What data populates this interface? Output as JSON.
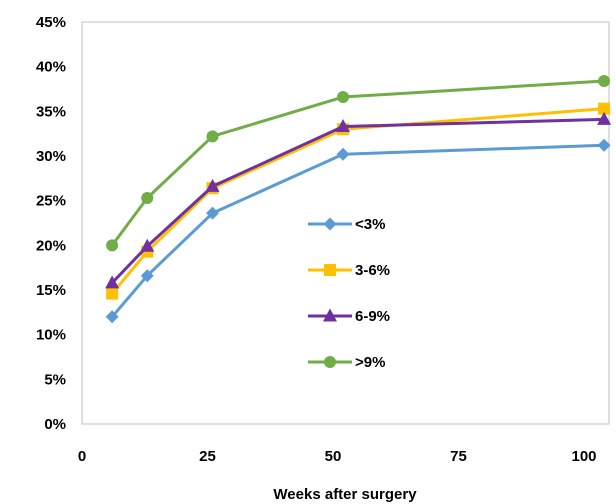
{
  "chart_data": {
    "type": "line",
    "title": "",
    "xlabel": "Weeks after surgery",
    "ylabel": "",
    "xlim": [
      0,
      105
    ],
    "ylim": [
      0,
      45
    ],
    "x_ticks": [
      0,
      25,
      50,
      75,
      100
    ],
    "y_ticks": [
      0,
      5,
      10,
      15,
      20,
      25,
      30,
      35,
      40,
      45
    ],
    "y_tick_labels": [
      "0%",
      "5%",
      "10%",
      "15%",
      "20%",
      "25%",
      "30%",
      "35%",
      "40%",
      "45%"
    ],
    "grid": false,
    "legend_position": "center",
    "series": [
      {
        "name": "<3%",
        "color": "#5B9BD5",
        "marker": "diamond",
        "x": [
          6,
          13,
          26,
          52,
          104
        ],
        "y": [
          12.0,
          16.6,
          23.6,
          30.2,
          31.2
        ]
      },
      {
        "name": "3-6%",
        "color": "#FFC000",
        "marker": "square",
        "x": [
          6,
          13,
          26,
          52,
          104
        ],
        "y": [
          14.6,
          19.3,
          26.4,
          33.0,
          35.3
        ]
      },
      {
        "name": "6-9%",
        "color": "#7030A0",
        "marker": "triangle",
        "x": [
          6,
          13,
          26,
          52,
          104
        ],
        "y": [
          15.8,
          19.9,
          26.6,
          33.3,
          34.1
        ]
      },
      {
        "name": ">9%",
        "color": "#70AD47",
        "marker": "circle",
        "x": [
          6,
          13,
          26,
          52,
          104
        ],
        "y": [
          20.0,
          25.3,
          32.2,
          36.6,
          38.4
        ]
      }
    ]
  }
}
